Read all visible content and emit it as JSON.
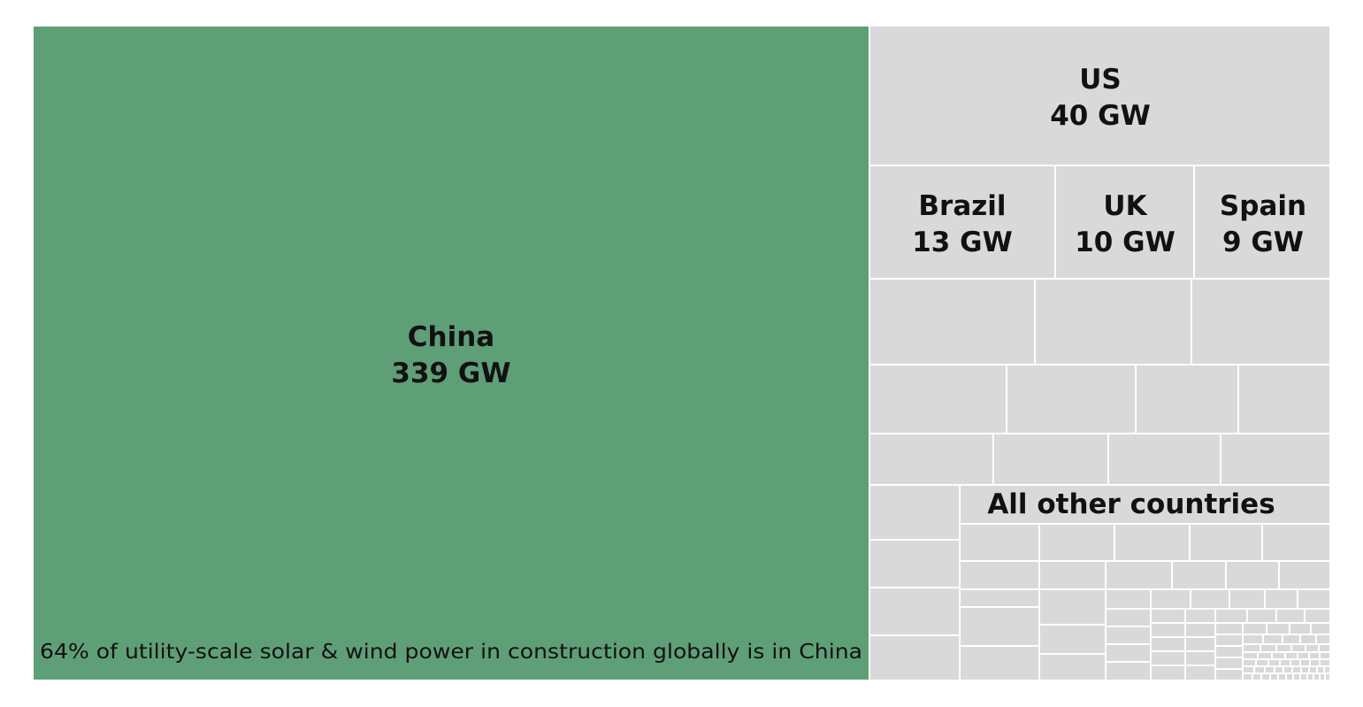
{
  "chart_data": {
    "type": "treemap",
    "unit": "GW",
    "colors": {
      "china": "#5f9f78",
      "others": "#d9d9d9",
      "border": "#ffffff"
    },
    "items": [
      {
        "name": "China",
        "value": 339,
        "label": "339 GW"
      },
      {
        "name": "US",
        "value": 40,
        "label": "40 GW"
      },
      {
        "name": "Brazil",
        "value": 13,
        "label": "13 GW"
      },
      {
        "name": "UK",
        "value": 10,
        "label": "10 GW"
      },
      {
        "name": "Spain",
        "value": 9,
        "label": "9 GW"
      }
    ],
    "others_label": "All other countries",
    "annotation": "64% of utility-scale solar & wind power in construction globally is in China"
  }
}
